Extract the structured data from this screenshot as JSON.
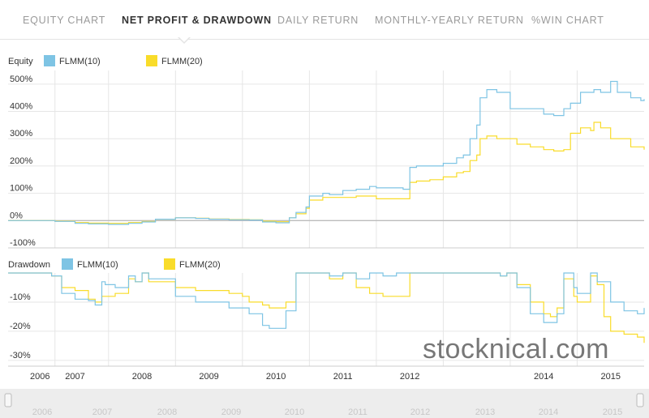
{
  "tabs": [
    {
      "label": "EQUITY CHART",
      "active": false
    },
    {
      "label": "NET PROFIT & DRAWDOWN",
      "active": true
    },
    {
      "label": "DAILY RETURN",
      "active": false
    },
    {
      "label": "MONTHLY-YEARLY RETURN",
      "active": false
    },
    {
      "label": "%WIN CHART",
      "active": false
    }
  ],
  "watermark": "stocknical.com",
  "colors": {
    "series1": "#7ec4e4",
    "series2": "#f9dc2a",
    "grid": "#e6e6e6",
    "zero": "#bcbcbc"
  },
  "chart_data": [
    {
      "type": "line",
      "title": "Equity",
      "ylim": [
        -100,
        550
      ],
      "yticks": [
        -100,
        0,
        100,
        200,
        300,
        400,
        500
      ],
      "ytick_labels": [
        "-100%",
        "0%",
        "100%",
        "200%",
        "300%",
        "400%",
        "500%"
      ],
      "xlabel": "",
      "ylabel": "",
      "legend": "top-left",
      "grid": true,
      "x_axis": {
        "min": 2006.0,
        "max": 2015.5
      },
      "series": [
        {
          "name": "FLMM(10)",
          "x": [
            2006.0,
            2006.7,
            2007.0,
            2007.2,
            2007.5,
            2007.8,
            2008.0,
            2008.2,
            2008.5,
            2008.8,
            2009.0,
            2009.3,
            2009.6,
            2009.8,
            2010.0,
            2010.1,
            2010.2,
            2010.3,
            2010.45,
            2010.5,
            2010.7,
            2010.8,
            2011.0,
            2011.2,
            2011.4,
            2011.5,
            2011.8,
            2011.9,
            2012.0,
            2012.1,
            2012.3,
            2012.5,
            2012.7,
            2012.8,
            2012.9,
            2013.0,
            2013.05,
            2013.15,
            2013.3,
            2013.4,
            2013.5,
            2013.6,
            2013.8,
            2014.0,
            2014.15,
            2014.3,
            2014.4,
            2014.5,
            2014.55,
            2014.7,
            2014.75,
            2014.85,
            2015.0,
            2015.1,
            2015.3,
            2015.45,
            2015.5
          ],
          "y": [
            0,
            -3,
            -10,
            -12,
            -14,
            -10,
            -5,
            5,
            10,
            8,
            5,
            3,
            2,
            -5,
            -8,
            -8,
            10,
            30,
            50,
            90,
            100,
            95,
            110,
            115,
            125,
            120,
            120,
            115,
            195,
            200,
            200,
            210,
            230,
            240,
            300,
            350,
            450,
            480,
            470,
            470,
            410,
            410,
            410,
            390,
            385,
            410,
            430,
            430,
            470,
            470,
            480,
            470,
            510,
            470,
            450,
            440,
            445
          ]
        },
        {
          "name": "FLMM(20)",
          "x": [
            2006.0,
            2006.7,
            2007.0,
            2007.2,
            2007.5,
            2007.8,
            2008.0,
            2008.2,
            2008.5,
            2008.8,
            2009.0,
            2009.3,
            2009.6,
            2009.8,
            2010.0,
            2010.1,
            2010.2,
            2010.3,
            2010.45,
            2010.5,
            2010.7,
            2010.8,
            2011.0,
            2011.2,
            2011.4,
            2011.5,
            2011.8,
            2011.9,
            2012.0,
            2012.1,
            2012.3,
            2012.5,
            2012.7,
            2012.8,
            2012.9,
            2013.0,
            2013.05,
            2013.15,
            2013.3,
            2013.4,
            2013.5,
            2013.6,
            2013.8,
            2014.0,
            2014.15,
            2014.3,
            2014.4,
            2014.5,
            2014.55,
            2014.7,
            2014.75,
            2014.85,
            2015.0,
            2015.1,
            2015.3,
            2015.45,
            2015.5
          ],
          "y": [
            0,
            -2,
            -7,
            -9,
            -10,
            -7,
            -3,
            5,
            10,
            9,
            6,
            4,
            3,
            -2,
            -4,
            -4,
            10,
            25,
            45,
            75,
            85,
            85,
            85,
            90,
            90,
            80,
            80,
            80,
            140,
            145,
            150,
            160,
            175,
            180,
            220,
            240,
            300,
            310,
            300,
            300,
            300,
            280,
            270,
            260,
            255,
            260,
            320,
            320,
            340,
            330,
            360,
            340,
            300,
            300,
            270,
            270,
            260
          ]
        }
      ]
    },
    {
      "type": "line",
      "title": "Drawdown",
      "ylim": [
        -32,
        0
      ],
      "yticks": [
        -10,
        -20,
        -30
      ],
      "ytick_labels": [
        "-10%",
        "-20%",
        "-30%"
      ],
      "xlabel": "",
      "ylabel": "",
      "legend": "top-left",
      "grid": true,
      "x_axis": {
        "min": 2006.0,
        "max": 2015.5
      },
      "x_tick_values": [
        2006.0,
        2007.0,
        2008.0,
        2009.0,
        2010.0,
        2011.0,
        2012.0,
        2014.0,
        2015.0
      ],
      "x_tick_labels": [
        "2006",
        "2007",
        "2008",
        "2009",
        "2010",
        "2011",
        "2012",
        "2014",
        "2015"
      ],
      "series": [
        {
          "name": "FLMM(10)",
          "x": [
            2006.0,
            2006.6,
            2006.65,
            2006.8,
            2007.0,
            2007.2,
            2007.3,
            2007.4,
            2007.45,
            2007.6,
            2007.8,
            2007.9,
            2008.0,
            2008.1,
            2008.3,
            2008.5,
            2008.6,
            2008.8,
            2009.0,
            2009.3,
            2009.5,
            2009.6,
            2009.8,
            2009.9,
            2010.1,
            2010.15,
            2010.3,
            2010.5,
            2010.7,
            2010.8,
            2011.0,
            2011.2,
            2011.4,
            2011.6,
            2011.8,
            2012.0,
            2012.3,
            2012.6,
            2012.8,
            2013.0,
            2013.2,
            2013.35,
            2013.45,
            2013.6,
            2013.8,
            2014.0,
            2014.1,
            2014.2,
            2014.3,
            2014.45,
            2014.5,
            2014.7,
            2014.8,
            2014.9,
            2015.0,
            2015.2,
            2015.4,
            2015.5
          ],
          "y": [
            0,
            0,
            -1,
            -7,
            -9,
            -9.5,
            -11,
            -3,
            -4,
            -5,
            -1,
            -3,
            0,
            -2,
            -2,
            -8,
            -8,
            -10,
            -10,
            -12,
            -12,
            -14,
            -18,
            -19,
            -19,
            -13,
            0,
            0,
            0,
            -1,
            0,
            -2,
            0,
            -1,
            0,
            0,
            0,
            0,
            0,
            0,
            0,
            -1,
            0,
            -5,
            -14,
            -17,
            -17,
            -14,
            0,
            -5,
            -7,
            0,
            -3,
            -3,
            -10,
            -13,
            -14,
            -12
          ]
        },
        {
          "name": "FLMM(20)",
          "x": [
            2006.0,
            2006.6,
            2006.65,
            2006.8,
            2007.0,
            2007.2,
            2007.3,
            2007.4,
            2007.45,
            2007.6,
            2007.8,
            2007.9,
            2008.0,
            2008.1,
            2008.3,
            2008.5,
            2008.6,
            2008.8,
            2009.0,
            2009.3,
            2009.5,
            2009.6,
            2009.8,
            2009.9,
            2010.1,
            2010.15,
            2010.3,
            2010.5,
            2010.7,
            2010.8,
            2011.0,
            2011.2,
            2011.4,
            2011.6,
            2011.8,
            2012.0,
            2012.3,
            2012.6,
            2012.8,
            2013.0,
            2013.2,
            2013.35,
            2013.45,
            2013.6,
            2013.8,
            2014.0,
            2014.1,
            2014.2,
            2014.3,
            2014.45,
            2014.5,
            2014.7,
            2014.8,
            2014.9,
            2015.0,
            2015.2,
            2015.4,
            2015.5
          ],
          "y": [
            0,
            0,
            -1,
            -5,
            -6,
            -9,
            -10,
            -8,
            -8,
            -7,
            -2,
            -3,
            0,
            -3,
            -3,
            -5,
            -5,
            -6,
            -6,
            -7,
            -8,
            -10,
            -11,
            -12,
            -12,
            -10,
            0,
            0,
            0,
            -2,
            0,
            -5,
            -7,
            -8,
            -8,
            0,
            0,
            0,
            0,
            0,
            0,
            -1,
            0,
            -4,
            -10,
            -14,
            -15,
            -12,
            -2,
            -8,
            -10,
            -1,
            -4,
            -15,
            -20,
            -21,
            -22,
            -24
          ]
        }
      ]
    }
  ],
  "navigator": {
    "labels": [
      "2006",
      "2007",
      "2008",
      "2009",
      "2010",
      "2011",
      "2012",
      "2013",
      "2014",
      "2015"
    ]
  }
}
